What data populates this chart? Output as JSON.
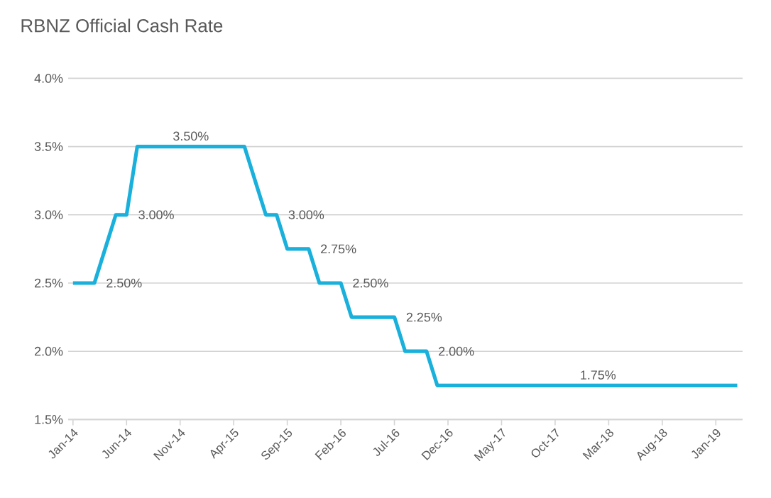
{
  "chart_data": {
    "type": "line",
    "title": "RBNZ Official Cash Rate",
    "categories": [
      "Jan-14",
      null,
      null,
      null,
      null,
      "Jun-14",
      null,
      null,
      null,
      null,
      "Nov-14",
      null,
      null,
      null,
      null,
      "Apr-15",
      null,
      null,
      null,
      null,
      "Sep-15",
      null,
      null,
      null,
      null,
      "Feb-16",
      null,
      null,
      null,
      null,
      "Jul-16",
      null,
      null,
      null,
      null,
      "Dec-16",
      null,
      null,
      null,
      null,
      "May-17",
      null,
      null,
      null,
      null,
      "Oct-17",
      null,
      null,
      null,
      null,
      "Mar-18",
      null,
      null,
      null,
      null,
      "Aug-18",
      null,
      null,
      null,
      null,
      "Jan-19",
      null,
      null
    ],
    "series": [
      {
        "color": "#1ab0dc",
        "values": [
          2.5,
          2.5,
          2.5,
          2.75,
          3.0,
          3.0,
          3.5,
          3.5,
          3.5,
          3.5,
          3.5,
          3.5,
          3.5,
          3.5,
          3.5,
          3.5,
          3.5,
          3.25,
          3.0,
          3.0,
          2.75,
          2.75,
          2.75,
          2.5,
          2.5,
          2.5,
          2.25,
          2.25,
          2.25,
          2.25,
          2.25,
          2.0,
          2.0,
          2.0,
          1.75,
          1.75,
          1.75,
          1.75,
          1.75,
          1.75,
          1.75,
          1.75,
          1.75,
          1.75,
          1.75,
          1.75,
          1.75,
          1.75,
          1.75,
          1.75,
          1.75,
          1.75,
          1.75,
          1.75,
          1.75,
          1.75,
          1.75,
          1.75,
          1.75,
          1.75,
          1.75,
          1.75,
          1.75
        ],
        "value_labels": [
          null,
          null,
          "2.50%",
          null,
          null,
          "3.00%",
          null,
          null,
          null,
          null,
          null,
          "3.50%",
          null,
          null,
          null,
          null,
          null,
          null,
          null,
          "3.00%",
          null,
          null,
          "2.75%",
          null,
          null,
          "2.50%",
          null,
          null,
          null,
          null,
          "2.25%",
          null,
          null,
          "2.00%",
          null,
          null,
          null,
          null,
          null,
          null,
          null,
          null,
          null,
          null,
          null,
          null,
          null,
          null,
          null,
          "1.75%",
          null,
          null,
          null,
          null,
          null,
          null,
          null,
          null,
          null,
          null,
          null,
          null,
          null
        ]
      }
    ],
    "ylim": [
      1.5,
      4.0
    ],
    "yticks": [
      {
        "value": 1.5,
        "label": "1.5%"
      },
      {
        "value": 2.0,
        "label": "2.0%"
      },
      {
        "value": 2.5,
        "label": "2.5%"
      },
      {
        "value": 3.0,
        "label": "3.0%"
      },
      {
        "value": 3.5,
        "label": "3.5%"
      },
      {
        "value": 4.0,
        "label": "4.0%"
      }
    ],
    "grid": "y",
    "marker": "none",
    "line_style": "solid"
  }
}
